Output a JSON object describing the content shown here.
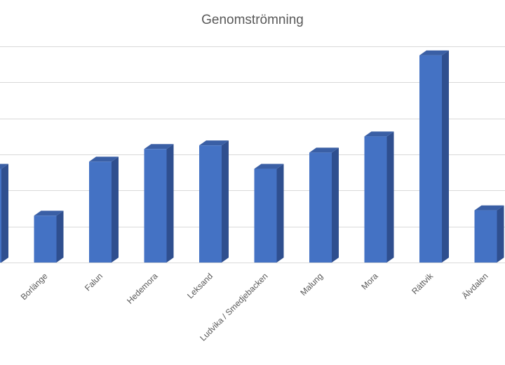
{
  "chart_data": {
    "type": "bar",
    "title": "Genomströmning",
    "categories": [
      "",
      "Borlänge",
      "Falun",
      "Hedemora",
      "Leksand",
      "Ludvika / Smedjebacken",
      "Malung",
      "Mora",
      "Rättvik",
      "Älvdalen",
      ""
    ],
    "values": [
      2.6,
      1.3,
      2.8,
      3.15,
      3.25,
      2.6,
      3.05,
      3.5,
      5.75,
      1.45,
      null
    ],
    "ylim": [
      0,
      6
    ],
    "grid": true,
    "legend": "none",
    "bar_front_color": "#4472c4",
    "bar_side_color": "#2f4f8f",
    "bar_top_color": "#3a5fa5"
  }
}
